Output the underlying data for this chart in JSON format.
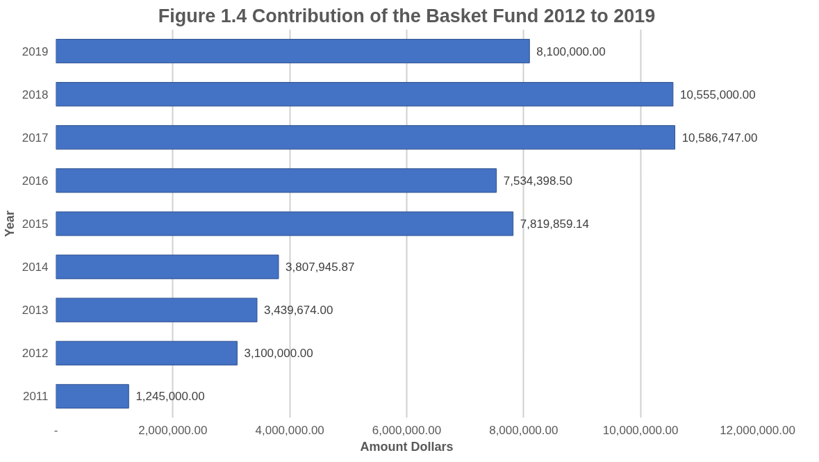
{
  "chart_data": {
    "type": "bar",
    "orientation": "horizontal",
    "title": "Figure 1.4 Contribution of the Basket Fund 2012 to 2019",
    "xlabel": "Amount Dollars",
    "ylabel": "Year",
    "categories": [
      "2019",
      "2018",
      "2017",
      "2016",
      "2015",
      "2014",
      "2013",
      "2012",
      "2011"
    ],
    "values": [
      8100000,
      10555000,
      10586747,
      7534398.5,
      7819859.14,
      3807945.87,
      3439674,
      3100000,
      1245000
    ],
    "value_labels": [
      "8,100,000.00",
      "10,555,000.00",
      "10,586,747.00",
      "7,534,398.50",
      "7,819,859.14",
      "3,807,945.87",
      "3,439,674.00",
      "3,100,000.00",
      "1,245,000.00"
    ],
    "color": "#4472c4",
    "xlim": [
      0,
      12000000
    ],
    "xticks": [
      {
        "value": 0,
        "label": "-"
      },
      {
        "value": 2000000,
        "label": "2,000,000.00"
      },
      {
        "value": 4000000,
        "label": "4,000,000.00"
      },
      {
        "value": 6000000,
        "label": "6,000,000.00"
      },
      {
        "value": 8000000,
        "label": "8,000,000.00"
      },
      {
        "value": 10000000,
        "label": "10,000,000.00"
      },
      {
        "value": 12000000,
        "label": "12,000,000.00"
      }
    ],
    "grid": "x"
  }
}
